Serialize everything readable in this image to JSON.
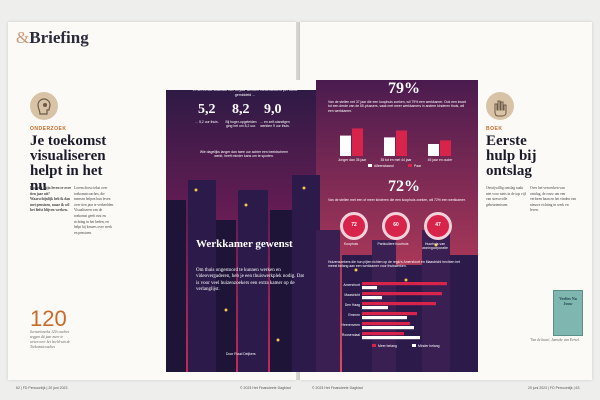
{
  "header": {
    "amp": "&",
    "title": "Briefing"
  },
  "left": {
    "tag": "ONDERZOEK",
    "heading": "Je toekomst visualiseren helpt in het nu",
    "intro": "Hoe ziet mijn leven er over tien jaar uit? Waarschijnlijk heb ik dan met pensioen, maar ik wil het liefst blijven werken.",
    "stat_number": "120",
    "stat_caption": "Scenarioreeks 120 coaches zeggen dit jaar meer te weten over het beeld van de Toekomstcoaches",
    "author": "Jolien Ummels"
  },
  "infographic": {
    "intro": "In het eerste kwartaal van dit jaar werkten Nederlanders per week gemiddeld ...",
    "stats": [
      {
        "value": "5,2",
        "label": "... 5,2 uur thuis."
      },
      {
        "value": "8,2",
        "label": "Bij hoger-opgeleiden ging het om 8,2 uur."
      },
      {
        "value": "9,0",
        "label": "... en zelf-standigen werkten 9 uur thuis."
      }
    ],
    "note": "Wie dagelijks langer dan twee uur achter een beeldscherm werkt, heeft minder kans om te sporten.",
    "pct1": "79%",
    "pct1_text": "Van de stellen net 37 jaar die een koophuis zoeken, wil 79% een werkkamer. Ook een kwart tot een derde van de 65-plussers, vaak met meer werkkamers in andere kinderen thuis, wil een werkkamer.",
    "chart1": {
      "categories": [
        "Jonger dan 35 jaar",
        "35 tot en met 44 jaar",
        "45 jaar en ouder"
      ],
      "series": [
        {
          "name": "Alleenstaand",
          "values": [
            68,
            62,
            40
          ]
        },
        {
          "name": "Paar",
          "values": [
            92,
            85,
            52
          ]
        }
      ]
    },
    "pct2": "72%",
    "pct2_text": "Van de stellen met een of meer kinderen die een koophuis zoeken, wil 72% een werkkamer.",
    "rings": [
      {
        "value": "72",
        "label": "Koophuis"
      },
      {
        "value": "60",
        "label": "Particuliere huurhuis"
      },
      {
        "value": "47",
        "label": "Huurhuis van woningcorporatie"
      }
    ],
    "chart2_text": "Huizenzoekers die hun pijlen richten op de regio's Amersfoort en Maastricht hechten het meest belang aan een werkkamer voor thuiswerken.",
    "chart2": {
      "categories": [
        "Amersfoort",
        "Maastricht",
        "Den Haag",
        "Emmen",
        "Heerenveen",
        "Roosendaal"
      ],
      "series": [
        {
          "name": "Meer belang",
          "values": [
            85,
            80,
            74,
            55,
            48,
            42
          ]
        },
        {
          "name": "Minder belang",
          "values": [
            15,
            20,
            26,
            45,
            52,
            58
          ]
        }
      ]
    },
    "title": "Werkkamer gewenst",
    "subtitle": "Om thuis ongestoord te kunnen werken en videovergaderen, heb je een thuiswerkplek nodig. Dat is voor veel huizenzoekers een extra kamer op de verlanglijst.",
    "byline": "Door Ruud Deijkers"
  },
  "right": {
    "tag": "BOEK",
    "heading": "Eerste hulp bij ontslag",
    "intro": "Onvrijwillig ontslag raakt niet voor niets in de top vijf van stressvolle gebeurtenissen.",
    "book_title": "Verlies Na Jouw",
    "caption": "'Van de baan', Janneke van Eersel.",
    "author": "Jolien Ummels"
  },
  "footer": {
    "left": "62 | FD Persoonlijk | 20 juni 2023",
    "right": "20 juni 2023 | FD Persoonlijk | 63",
    "copy_left": "© 2023 Het Financieele Dagblad",
    "copy_right": "© 2023 Het Financieele Dagblad"
  },
  "colors": {
    "accent": "#c86a2a",
    "pink": "#d8234a",
    "purple": "#2a1a44"
  }
}
